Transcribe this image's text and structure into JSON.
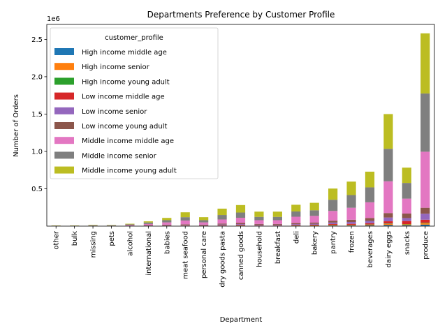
{
  "chart_data": {
    "type": "bar",
    "stacked": true,
    "title": "Departments Preference by Customer Profile",
    "xlabel": "Department",
    "ylabel": "Number of Orders",
    "y_multiplier_label": "1e6",
    "ylim": [
      0,
      2700000
    ],
    "yticks": [
      500000,
      1000000,
      1500000,
      2000000,
      2500000
    ],
    "ytick_labels": [
      "0.5",
      "1.0",
      "1.5",
      "2.0",
      "2.5"
    ],
    "grid": false,
    "legend": {
      "title": "customer_profile",
      "placement": "upper-left"
    },
    "categories": [
      "other",
      "bulk",
      "missing",
      "pets",
      "alcohol",
      "international",
      "babies",
      "meat seafood",
      "personal care",
      "dry goods pasta",
      "canned goods",
      "household",
      "breakfast",
      "deli",
      "bakery",
      "pantry",
      "frozen",
      "beverages",
      "dairy eggs",
      "snacks",
      "produce"
    ],
    "series": [
      {
        "name": "High income middle age",
        "color": "#1f77b4",
        "values": [
          0,
          0,
          0,
          0,
          1000,
          2000,
          2000,
          3000,
          2000,
          3000,
          4000,
          3000,
          3000,
          4000,
          5000,
          8000,
          8000,
          10000,
          15000,
          12000,
          20000
        ]
      },
      {
        "name": "High income senior",
        "color": "#ff7f0e",
        "values": [
          0,
          0,
          0,
          0,
          1000,
          2000,
          2000,
          3000,
          2000,
          3000,
          4000,
          3000,
          3000,
          4000,
          5000,
          8000,
          8000,
          10000,
          15000,
          12000,
          20000
        ]
      },
      {
        "name": "High income young adult",
        "color": "#2ca02c",
        "values": [
          0,
          0,
          0,
          0,
          0,
          1000,
          1000,
          1000,
          1000,
          1000,
          1000,
          1000,
          1000,
          1000,
          2000,
          2000,
          2000,
          3000,
          5000,
          4000,
          6000
        ]
      },
      {
        "name": "Low income middle age",
        "color": "#d62728",
        "values": [
          0,
          0,
          0,
          0,
          1000,
          2000,
          3000,
          4000,
          3000,
          5000,
          6000,
          4000,
          4000,
          6000,
          7000,
          10000,
          13000,
          16000,
          30000,
          40000,
          40000
        ]
      },
      {
        "name": "Low income senior",
        "color": "#9467bd",
        "values": [
          0,
          0,
          0,
          0,
          1000,
          3000,
          5000,
          6000,
          5000,
          10000,
          12000,
          8000,
          8000,
          12000,
          12000,
          20000,
          25000,
          30000,
          50000,
          40000,
          80000
        ]
      },
      {
        "name": "Low income young adult",
        "color": "#8c564b",
        "values": [
          0,
          0,
          0,
          0,
          2000,
          4000,
          7000,
          8000,
          7000,
          12000,
          15000,
          10000,
          10000,
          14000,
          16000,
          25000,
          30000,
          40000,
          60000,
          60000,
          80000
        ]
      },
      {
        "name": "Middle income middle age",
        "color": "#e377c2",
        "values": [
          3000,
          3000,
          5000,
          5000,
          8000,
          15000,
          30000,
          50000,
          30000,
          55000,
          70000,
          50000,
          50000,
          85000,
          90000,
          130000,
          160000,
          210000,
          425000,
          200000,
          750000
        ]
      },
      {
        "name": "Middle income senior",
        "color": "#7f7f7f",
        "values": [
          3000,
          3000,
          5000,
          5000,
          10000,
          20000,
          30000,
          45000,
          30000,
          60000,
          70000,
          45000,
          45000,
          70000,
          75000,
          150000,
          170000,
          200000,
          435000,
          210000,
          780000
        ]
      },
      {
        "name": "Middle income young adult",
        "color": "#bcbd22",
        "values": [
          3000,
          3000,
          5000,
          4000,
          8000,
          15000,
          30000,
          65000,
          40000,
          85000,
          100000,
          70000,
          70000,
          90000,
          100000,
          150000,
          180000,
          210000,
          465000,
          205000,
          805000
        ]
      }
    ]
  }
}
